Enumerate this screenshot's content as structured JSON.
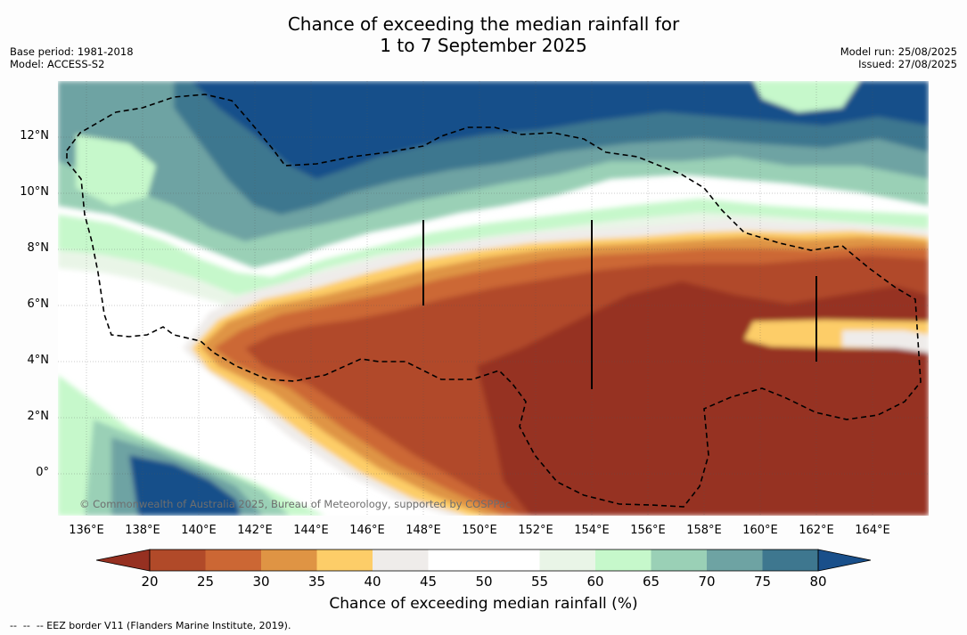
{
  "title": {
    "line1": "Chance of exceeding the median rainfall for",
    "line2": "1 to 7 September 2025"
  },
  "meta_left": {
    "base_period": "Base period: 1981-2018",
    "model": "Model: ACCESS-S2"
  },
  "meta_right": {
    "model_run": "Model run: 25/08/2025",
    "issued": "Issued: 27/08/2025"
  },
  "map": {
    "lon_range": [
      135,
      166
    ],
    "lat_range": [
      -1.5,
      14
    ],
    "x_ticks": [
      "136°E",
      "138°E",
      "140°E",
      "142°E",
      "144°E",
      "146°E",
      "148°E",
      "150°E",
      "152°E",
      "154°E",
      "156°E",
      "158°E",
      "160°E",
      "162°E",
      "164°E"
    ],
    "y_ticks": [
      "12°N",
      "10°N",
      "8°N",
      "6°N",
      "4°N",
      "2°N",
      "0°"
    ],
    "credit": "© Commonwealth of Australia 2025, Bureau of Meteorology, supported by COSPPac",
    "boundary_legend": "--  --  -- EEZ border V11 (Flanders Marine Institute, 2019)."
  },
  "colorbar": {
    "labels": [
      "20",
      "25",
      "30",
      "35",
      "40",
      "45",
      "50",
      "55",
      "60",
      "65",
      "70",
      "75",
      "80"
    ],
    "colors": [
      "#963021",
      "#b14a29",
      "#cc6734",
      "#df9444",
      "#fdcd68",
      "#efecea",
      "#ffffff",
      "#ffffff",
      "#e9f5e7",
      "#c6f8cb",
      "#9ad0b6",
      "#6ea3a3",
      "#3e778f",
      "#194f8a"
    ],
    "title": "Chance of exceeding median rainfall (%)"
  }
}
